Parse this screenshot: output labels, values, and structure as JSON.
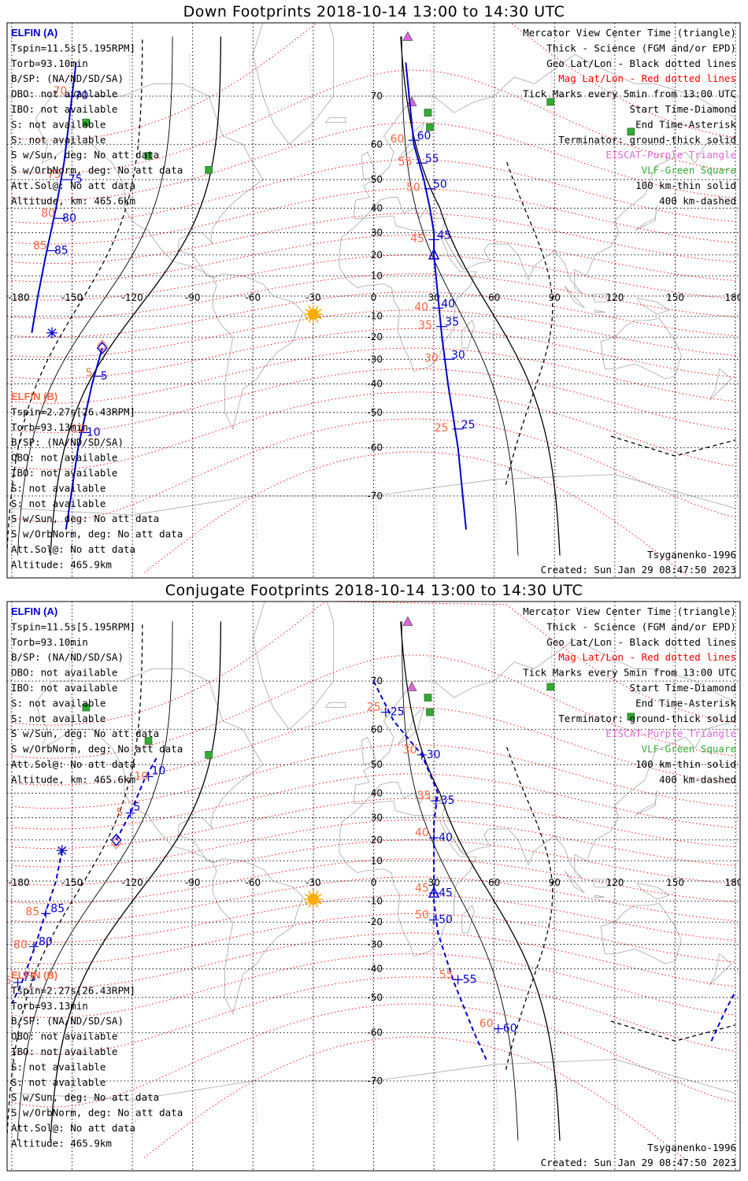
{
  "panels": [
    {
      "id": "down",
      "title": "Down Footprints 2018-10-14 13:00 to 14:30 UTC",
      "elfin_a": {
        "name": "ELFIN (A)",
        "lines": [
          "Tspin=11.5s[5.195RPM]",
          "Torb=93.10min",
          "B/SP: (NA/ND/SD/SA)",
          "OBO: not available",
          "IBO: not available",
          "S: not available",
          "S: not available",
          "S w/Sun, deg: No att data",
          "S w/OrbNorm, deg: No att data",
          "Att.Sol@: No att data",
          "Altitude, km: 465.6km"
        ]
      },
      "elfin_b": {
        "name": "ELFIN (B)",
        "lines": [
          "Tspin=2.27s[26.43RPM]",
          "Torb=93.13min",
          "B/SP: (NA/ND/SD/SA)",
          "OBO: not available",
          "IBO: not available",
          "S: not available",
          "S: not available",
          "S w/Sun, deg: No att data",
          "S w/OrbNorm, deg: No att data",
          "Att.Sol@: No att data",
          "Altitude: 465.9km"
        ]
      },
      "legend": [
        {
          "text": "Mercator View Center Time (triangle)",
          "color": "#000000"
        },
        {
          "text": "Thick - Science (FGM and/or EPD)",
          "color": "#000000"
        },
        {
          "text": "Geo Lat/Lon - Black dotted lines",
          "color": "#000000"
        },
        {
          "text": "Mag Lat/Lon - Red dotted lines",
          "color": "#ff0000"
        },
        {
          "text": "Tick Marks every 5min from 13:00 UTC",
          "color": "#000000"
        },
        {
          "text": "Start Time-Diamond",
          "color": "#000000"
        },
        {
          "text": "End Time-Asterisk",
          "color": "#000000"
        },
        {
          "text": "Terminator: ground-thick solid",
          "color": "#000000"
        },
        {
          "text": "EISCAT-Purple Triangle",
          "color": "#dd66dd"
        },
        {
          "text": "VLF-Green Square",
          "color": "#33aa33"
        },
        {
          "text": "100 km-thin solid",
          "color": "#000000"
        },
        {
          "text": "400 km-dashed",
          "color": "#000000"
        }
      ],
      "model": "Tsyganenko-1996",
      "created": "Created: Sun Jan 29 08:47:50 2023",
      "lon_ticks": [
        "-180",
        "-150",
        "-120",
        "-90",
        "-60",
        "-30",
        "0",
        "30",
        "60",
        "90",
        "120",
        "150",
        "180"
      ],
      "lat_ticks": [
        "70",
        "60",
        "50",
        "40",
        "30",
        "20",
        "10",
        "-10",
        "-20",
        "-30",
        "-40",
        "-50",
        "-60",
        "-70"
      ],
      "track_a_labels": [
        "60",
        "55",
        "50",
        "45",
        "40",
        "35",
        "30",
        "25"
      ],
      "track_a_left_labels": [
        "70",
        "75",
        "80",
        "85"
      ],
      "track_b_labels": [
        "5",
        "10"
      ]
    },
    {
      "id": "conjugate",
      "title": "Conjugate Footprints 2018-10-14 13:00 to 14:30 UTC",
      "elfin_a": {
        "name": "ELFIN (A)",
        "lines": [
          "Tspin=11.5s[5.195RPM]",
          "Torb=93.10min",
          "B/SP: (NA/ND/SD/SA)",
          "OBO: not available",
          "IBO: not available",
          "S: not available",
          "S: not available",
          "S w/Sun, deg: No att data",
          "S w/OrbNorm, deg: No att data",
          "Att.Sol@: No att data",
          "Altitude, km: 465.6km"
        ]
      },
      "elfin_b": {
        "name": "ELFIN (B)",
        "lines": [
          "Tspin=2.27s[26.43RPM]",
          "Torb=93.13min",
          "B/SP: (NA/ND/SD/SA)",
          "OBO: not available",
          "IBO: not available",
          "S: not available",
          "S: not available",
          "S w/Sun, deg: No att data",
          "S w/OrbNorm, deg: No att data",
          "Att.Sol@: No att data",
          "Altitude: 465.9km"
        ]
      },
      "legend": [
        {
          "text": "Mercator View Center Time (triangle)",
          "color": "#000000"
        },
        {
          "text": "Thick - Science (FGM and/or EPD)",
          "color": "#000000"
        },
        {
          "text": "Geo Lat/Lon - Black dotted lines",
          "color": "#000000"
        },
        {
          "text": "Mag Lat/Lon - Red dotted lines",
          "color": "#ff0000"
        },
        {
          "text": "Tick Marks every 5min from 13:00 UTC",
          "color": "#000000"
        },
        {
          "text": "Start Time-Diamond",
          "color": "#000000"
        },
        {
          "text": "End Time-Asterisk",
          "color": "#000000"
        },
        {
          "text": "Terminator: ground-thick solid",
          "color": "#000000"
        },
        {
          "text": "EISCAT-Purple Triangle",
          "color": "#dd66dd"
        },
        {
          "text": "VLF-Green Square",
          "color": "#33aa33"
        },
        {
          "text": "100 km-thin solid",
          "color": "#000000"
        },
        {
          "text": "400 km-dashed",
          "color": "#000000"
        }
      ],
      "model": "Tsyganenko-1996",
      "created": "Created: Sun Jan 29 08:47:50 2023",
      "lon_ticks": [
        "-180",
        "-150",
        "-120",
        "-90",
        "-60",
        "-30",
        "0",
        "30",
        "60",
        "90",
        "120",
        "150",
        "180"
      ],
      "lat_ticks": [
        "70",
        "60",
        "50",
        "40",
        "30",
        "20",
        "10",
        "-10",
        "-20",
        "-30",
        "-40",
        "-50",
        "-60",
        "-70"
      ],
      "track_a_labels": [
        "25",
        "30",
        "35",
        "40",
        "45",
        "50",
        "55",
        "60"
      ],
      "track_a_left_labels": [
        "85",
        "80",
        "75"
      ],
      "track_b_labels": [
        "5",
        "10"
      ]
    }
  ],
  "colors": {
    "elfin_a": "#0000cc",
    "elfin_b": "#ff6644",
    "mag_grid": "#ff0000",
    "geo_grid": "#000000",
    "eiscat": "#dd66dd",
    "vlf": "#33aa33",
    "sun": "#ffaa00",
    "coast": "#b0b0b0"
  },
  "icons": {
    "eiscat": "triangle-icon",
    "vlf": "square-icon",
    "sun": "sun-icon",
    "start": "diamond-icon",
    "end": "asterisk-icon"
  }
}
